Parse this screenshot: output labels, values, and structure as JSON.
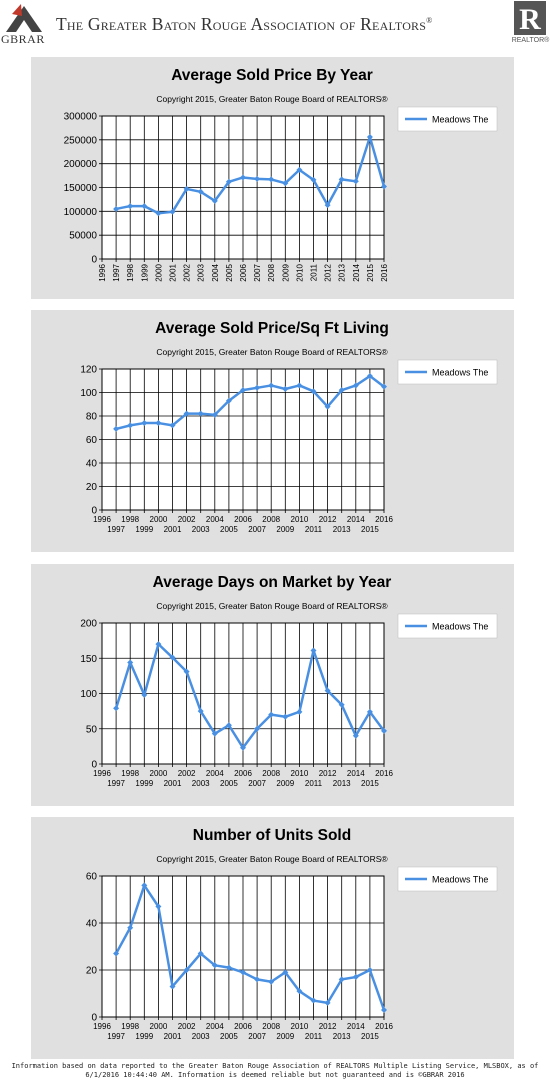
{
  "header": {
    "logo_text": "GBRAR",
    "title": "The Greater Baton Rouge Association of Realtors",
    "title_mark": "®",
    "right_logo_text": "REALTOR®"
  },
  "footer": {
    "line1": "Information based on data reported to the Greater Baton Rouge Association of REALTORS Multiple Listing Service, MLSBOX, as of",
    "line2": "6/1/2016 10:44:40 AM. Information is deemed reliable but not guaranteed and is ©GBRAR 2016"
  },
  "colors": {
    "line": "#4a90e2",
    "panel": "#e0e0e0"
  },
  "chart_data": [
    {
      "type": "line",
      "title": "Average Sold Price By Year",
      "subtitle": "Copyright 2015, Greater Baton Rouge Board of REALTORS®",
      "series": [
        {
          "name": "Meadows The",
          "values": [
            105000,
            111000,
            111000,
            96000,
            99000,
            147000,
            141000,
            122000,
            162000,
            171000,
            168000,
            167000,
            159000,
            187000,
            166000,
            113000,
            167000,
            163000,
            256000,
            152000
          ]
        }
      ],
      "x": [
        1997,
        1998,
        1999,
        2000,
        2001,
        2002,
        2003,
        2004,
        2005,
        2006,
        2007,
        2008,
        2009,
        2010,
        2011,
        2012,
        2013,
        2014,
        2015,
        2016
      ],
      "xlim": [
        1996,
        2016
      ],
      "ylim": [
        0,
        300000
      ],
      "yticks": [
        "0",
        "50000",
        "100000",
        "150000",
        "200000",
        "250000",
        "300000"
      ],
      "xticks_style": "rotated",
      "legend": "top-right",
      "grid": true
    },
    {
      "type": "line",
      "title": "Average Sold Price/Sq Ft Living",
      "subtitle": "Copyright 2015, Greater Baton Rouge Board of REALTORS®",
      "series": [
        {
          "name": "Meadows The",
          "values": [
            69,
            72,
            74,
            74,
            72,
            82,
            82,
            81,
            93,
            102,
            104,
            106,
            103,
            106,
            101,
            88,
            102,
            106,
            114,
            105
          ]
        }
      ],
      "x": [
        1997,
        1998,
        1999,
        2000,
        2001,
        2002,
        2003,
        2004,
        2005,
        2006,
        2007,
        2008,
        2009,
        2010,
        2011,
        2012,
        2013,
        2014,
        2015,
        2016
      ],
      "xlim": [
        1996,
        2016
      ],
      "ylim": [
        0,
        120
      ],
      "yticks": [
        "0",
        "20",
        "40",
        "60",
        "80",
        "100",
        "120"
      ],
      "xticks_style": "staggered",
      "legend": "top-right",
      "grid": true
    },
    {
      "type": "line",
      "title": "Average Days on Market by Year",
      "subtitle": "Copyright 2015, Greater Baton Rouge Board of REALTORS®",
      "series": [
        {
          "name": "Meadows The",
          "values": [
            79,
            144,
            98,
            170,
            151,
            131,
            75,
            43,
            55,
            23,
            50,
            70,
            67,
            74,
            161,
            104,
            84,
            40,
            74,
            47
          ]
        }
      ],
      "x": [
        1997,
        1998,
        1999,
        2000,
        2001,
        2002,
        2003,
        2004,
        2005,
        2006,
        2007,
        2008,
        2009,
        2010,
        2011,
        2012,
        2013,
        2014,
        2015,
        2016
      ],
      "xlim": [
        1996,
        2016
      ],
      "ylim": [
        0,
        200
      ],
      "yticks": [
        "0",
        "50",
        "100",
        "150",
        "200"
      ],
      "xticks_style": "staggered",
      "legend": "top-right",
      "grid": true
    },
    {
      "type": "line",
      "title": "Number of Units Sold",
      "subtitle": "Copyright 2015, Greater Baton Rouge Board of REALTORS®",
      "series": [
        {
          "name": "Meadows The",
          "values": [
            27,
            38,
            56,
            47,
            13,
            20,
            27,
            22,
            21,
            19,
            16,
            15,
            19,
            11,
            7,
            6,
            16,
            17,
            20,
            3
          ]
        }
      ],
      "x": [
        1997,
        1998,
        1999,
        2000,
        2001,
        2002,
        2003,
        2004,
        2005,
        2006,
        2007,
        2008,
        2009,
        2010,
        2011,
        2012,
        2013,
        2014,
        2015,
        2016
      ],
      "xlim": [
        1996,
        2016
      ],
      "ylim": [
        0,
        60
      ],
      "yticks": [
        "0",
        "20",
        "40",
        "60"
      ],
      "xticks_style": "staggered",
      "legend": "top-right",
      "grid": true
    }
  ]
}
